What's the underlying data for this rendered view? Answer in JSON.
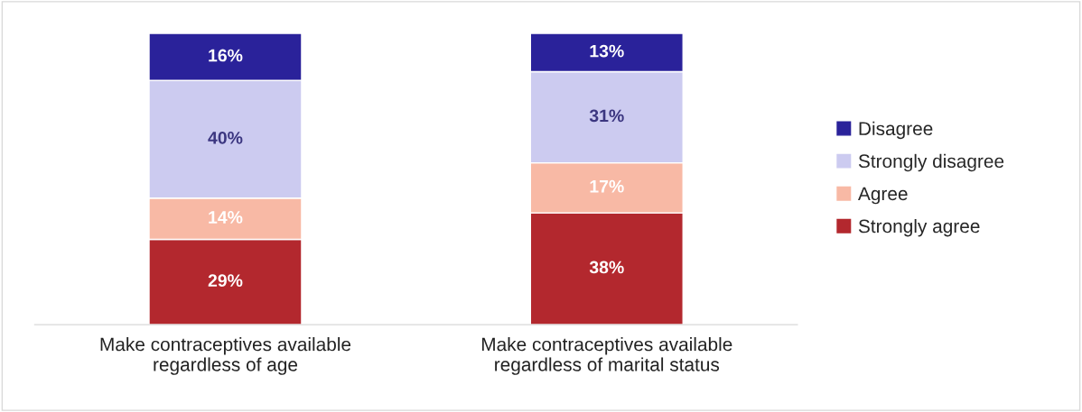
{
  "chart_data": {
    "type": "bar",
    "stacked": true,
    "legend": "right",
    "categories": [
      "Make contraceptives available\nregardless of age",
      "Make contraceptives available\nregardless of marital status"
    ],
    "series": [
      {
        "name": "Strongly agree",
        "color": "#b3282e",
        "values": [
          29,
          38
        ],
        "value_labels": [
          "29%",
          "38%"
        ]
      },
      {
        "name": "Agree",
        "color": "#f8b9a5",
        "values": [
          14,
          17
        ],
        "value_labels": [
          "14%",
          "17%"
        ]
      },
      {
        "name": "Strongly disagree",
        "color": "#cccbf0",
        "values": [
          40,
          31
        ],
        "value_labels": [
          "40%",
          "31%"
        ]
      },
      {
        "name": "Disagree",
        "color": "#2a229a",
        "values": [
          16,
          13
        ],
        "value_labels": [
          "16%",
          "13%"
        ]
      }
    ]
  }
}
